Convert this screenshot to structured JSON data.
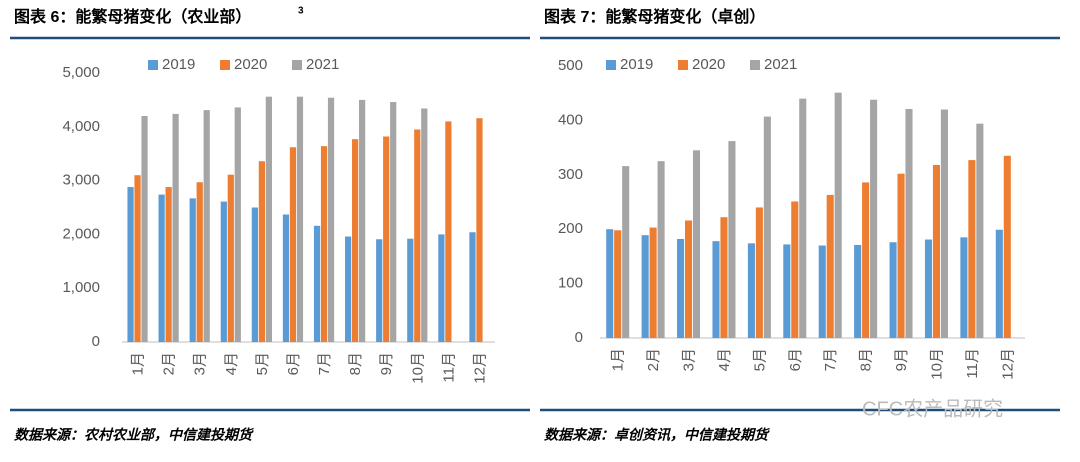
{
  "chart_data": [
    {
      "type": "bar",
      "title": "图表 6：能繁母猪变化（农业部）",
      "title_note": "3",
      "source": "数据来源：农村农业部，中信建投期货",
      "categories": [
        "1月",
        "2月",
        "3月",
        "4月",
        "5月",
        "6月",
        "7月",
        "8月",
        "9月",
        "10月",
        "11月",
        "12月"
      ],
      "series": [
        {
          "name": "2019",
          "color": "#5b9bd5",
          "values": [
            2880,
            2740,
            2670,
            2610,
            2500,
            2370,
            2160,
            1960,
            1910,
            1920,
            2000,
            2040
          ]
        },
        {
          "name": "2020",
          "color": "#ed7d31",
          "values": [
            3100,
            2880,
            2970,
            3110,
            3360,
            3620,
            3640,
            3770,
            3820,
            3950,
            4100,
            4160
          ]
        },
        {
          "name": "2021",
          "color": "#a5a5a5",
          "values": [
            4200,
            4240,
            4310,
            4360,
            4560,
            4560,
            4540,
            4500,
            4460,
            4340,
            null,
            null
          ]
        }
      ],
      "ylim": [
        0,
        5000
      ],
      "yticks": [
        0,
        {
          "value": 1000,
          "label": "1,000"
        },
        {
          "value": 2000,
          "label": "2,000"
        },
        {
          "value": 3000,
          "label": "3,000"
        },
        {
          "value": 4000,
          "label": "4,000"
        },
        {
          "value": 5000,
          "label": "5,000"
        }
      ],
      "grid": false,
      "legend": "top"
    },
    {
      "type": "bar",
      "title": "图表 7：能繁母猪变化（卓创）",
      "source": "数据来源：卓创资讯，中信建投期货",
      "categories": [
        "1月",
        "2月",
        "3月",
        "4月",
        "5月",
        "6月",
        "7月",
        "8月",
        "9月",
        "10月",
        "11月",
        "12月"
      ],
      "series": [
        {
          "name": "2019",
          "color": "#5b9bd5",
          "values": [
            200,
            189,
            182,
            178,
            174,
            172,
            170,
            171,
            176,
            181,
            185,
            199
          ]
        },
        {
          "name": "2020",
          "color": "#ed7d31",
          "values": [
            198,
            203,
            216,
            222,
            240,
            251,
            263,
            286,
            302,
            318,
            327,
            335
          ]
        },
        {
          "name": "2021",
          "color": "#a5a5a5",
          "values": [
            316,
            325,
            345,
            362,
            407,
            440,
            451,
            438,
            421,
            420,
            394,
            null
          ]
        }
      ],
      "ylim": [
        0,
        500
      ],
      "yticks": [
        0,
        100,
        200,
        300,
        400,
        500
      ],
      "grid": false,
      "legend": "top"
    }
  ],
  "watermark": "CFC农产品研究"
}
